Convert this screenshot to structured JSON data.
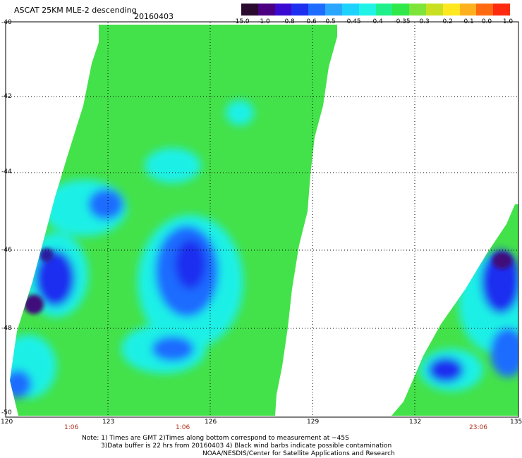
{
  "title": "ASCAT 25KM MLE-2 descending",
  "date": "20160403",
  "colorbar": {
    "labels": [
      "-15.0",
      "-1.0",
      "-0.8",
      "-0.6",
      "-0.5",
      "-0.45",
      "-0.4",
      "-0.35",
      "-0.3",
      "-0.2",
      "-0.1",
      "0.0",
      "1.0"
    ],
    "colors": [
      "#2a0a2e",
      "#4b0082",
      "#3a0ad2",
      "#1f2ff0",
      "#1e6cff",
      "#2aa6ff",
      "#1ed2ff",
      "#20f2e6",
      "#20f08a",
      "#30e84a",
      "#7ee43a",
      "#c8e020",
      "#ffe820",
      "#ffb01e",
      "#ff6a10",
      "#ff2a10"
    ]
  },
  "latitude_labels": [
    "-40",
    "-42",
    "-44",
    "-46",
    "-48",
    "-50"
  ],
  "longitude_labels": [
    "120",
    "123",
    "126",
    "129",
    "132",
    "135"
  ],
  "time_labels": [
    "1:06",
    "1:06",
    "23:06"
  ],
  "notes": [
    "Note: 1) Times are GMT 2)Times along bottom correspond to measurement at −45S",
    "3)Data buffer is 22 hrs from 20160403 4) Black wind barbs indicate possible contamination",
    "NOAA/NESDIS/Center for Satellite Applications and Research"
  ],
  "colors": {
    "swath_green": "#44e24a",
    "swath_cyan": "#1ef0e6",
    "swath_blue": "#1e2ef0",
    "swath_purple": "#40107a",
    "time_label": "#b0301a"
  }
}
